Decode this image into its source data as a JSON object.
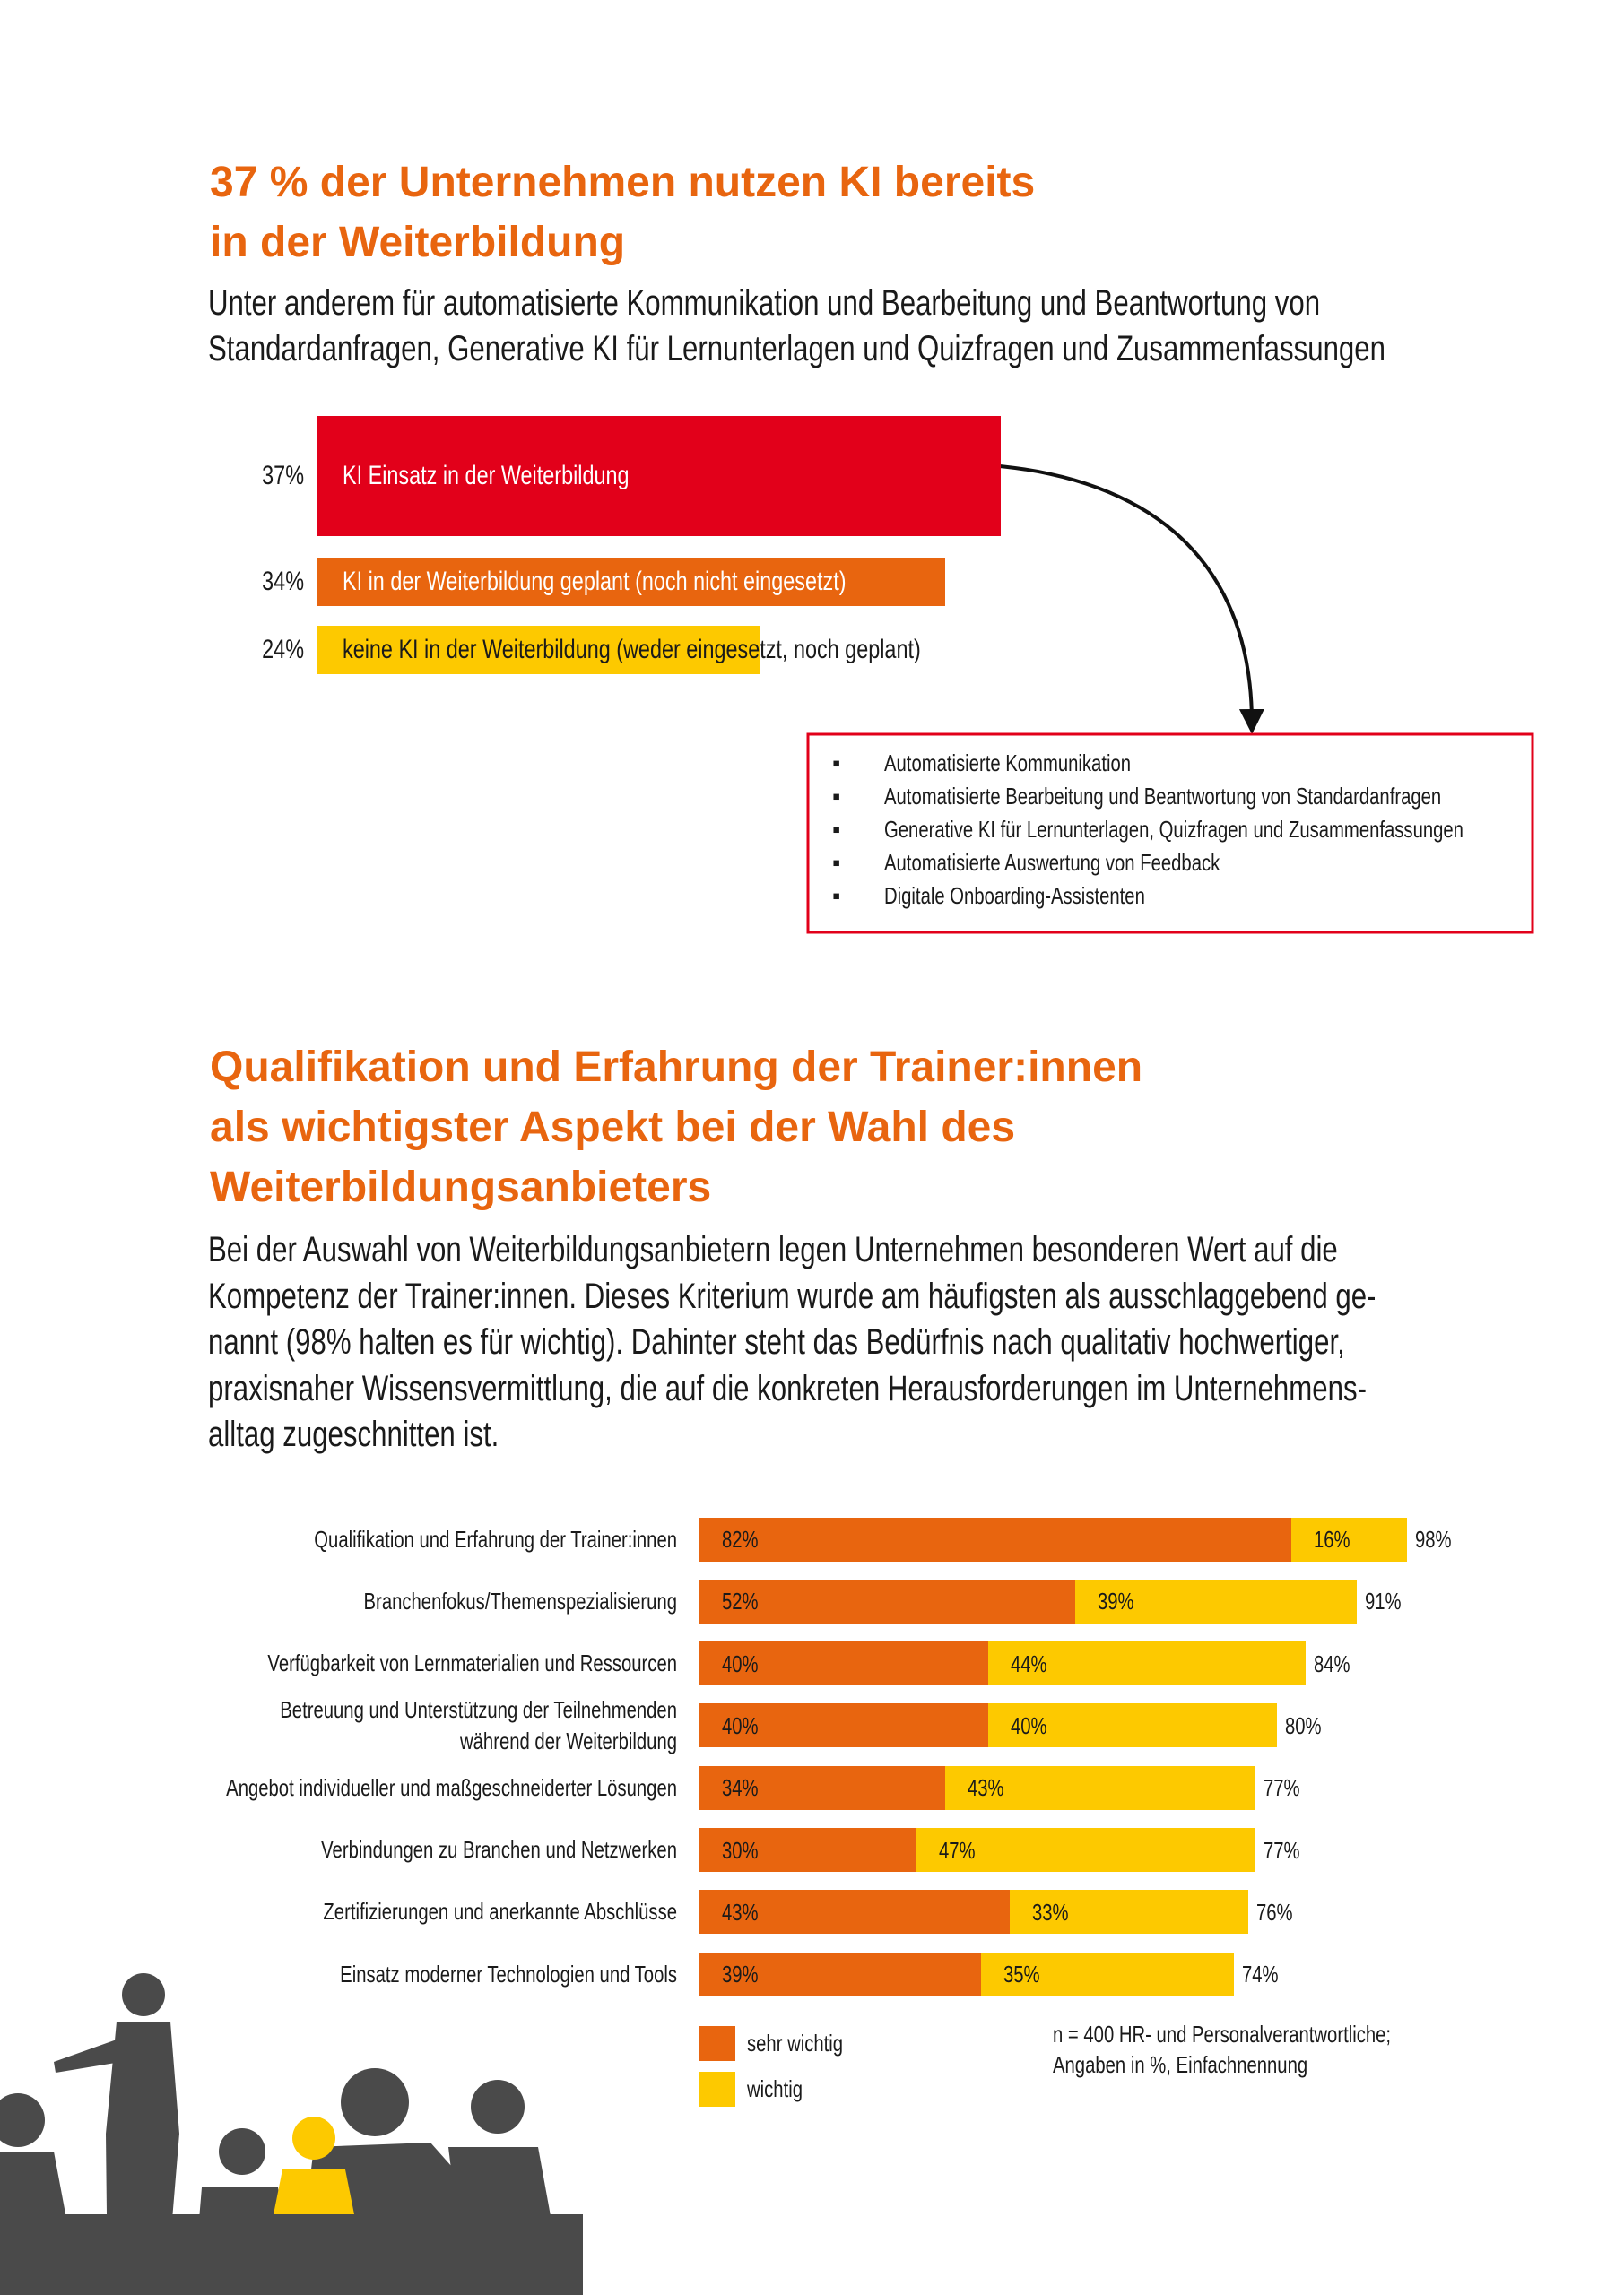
{
  "section1": {
    "title": "37 % der Unternehmen nutzen KI bereits\nin der Weiterbildung",
    "subtitle": "Unter anderem für automatisierte Kommunikation und Bearbeitung und Beantwortung von\nStandardanfragen, Generative KI für Lernunterlagen und Quizfragen und Zusammenfassungen"
  },
  "callout": {
    "items": [
      "Automatisierte Kommunikation",
      "Automatisierte Bearbeitung und Beantwortung von Standardanfragen",
      "Generative KI für Lernunterlagen, Quizfragen und Zusammenfassungen",
      "Automatisierte Auswertung von Feedback",
      "Digitale Onboarding-Assistenten"
    ]
  },
  "section2": {
    "title": "Qualifikation und Erfahrung der Trainer:innen\nals wichtigster Aspekt bei der Wahl des\nWeiterbildungsanbieters",
    "body": "Bei der Auswahl von Weiterbildungsanbietern legen Unternehmen besonderen Wert auf die\nKompetenz der Trainer:innen. Dieses Kriterium wurde am häufigsten als ausschlaggebend ge-\nnannt (98% halten es für wichtig). Dahinter steht das Bedürfnis nach qualitativ hochwertiger,\npraxisnaher Wissensvermittlung, die auf die konkreten Herausforderungen im Unternehmens-\nalltag zugeschnitten ist."
  },
  "chart_data": [
    {
      "type": "bar",
      "orientation": "horizontal",
      "categories": [
        "KI Einsatz in der Weiterbildung",
        "KI in der Weiterbildung geplant (noch nicht eingesetzt)",
        "keine KI in der Weiterbildung (weder eingesetzt, noch geplant)"
      ],
      "values": [
        37,
        34,
        24
      ],
      "value_labels": [
        "37%",
        "34%",
        "24%"
      ],
      "colors": [
        "#e2001a",
        "#e8650f",
        "#fdc900"
      ]
    },
    {
      "type": "stacked_bar",
      "orientation": "horizontal",
      "categories": [
        "Qualifikation und Erfahrung der Trainer:innen",
        "Branchenfokus/Themenspezialisierung",
        "Verfügbarkeit von Lernmaterialien und Ressourcen",
        "Betreuung und Unterstützung der Teilnehmenden\nwährend der Weiterbildung",
        "Angebot individueller und maßgeschneiderter Lösungen",
        "Verbindungen zu Branchen und Netzwerken",
        "Zertifizierungen und anerkannte Abschlüsse",
        "Einsatz moderner Technologien und Tools"
      ],
      "series": [
        {
          "name": "sehr wichtig",
          "color": "#e8650f",
          "values": [
            82,
            52,
            40,
            40,
            34,
            30,
            43,
            39
          ],
          "value_labels": [
            "82%",
            "52%",
            "40%",
            "40%",
            "34%",
            "30%",
            "43%",
            "39%"
          ]
        },
        {
          "name": "wichtig",
          "color": "#fdc900",
          "values": [
            16,
            39,
            44,
            40,
            43,
            47,
            33,
            35
          ],
          "value_labels": [
            "16%",
            "39%",
            "44%",
            "40%",
            "43%",
            "47%",
            "33%",
            "35%"
          ]
        }
      ],
      "totals": [
        98,
        91,
        84,
        80,
        77,
        77,
        76,
        74
      ],
      "total_labels": [
        "98%",
        "91%",
        "84%",
        "80%",
        "77%",
        "77%",
        "76%",
        "74%"
      ],
      "legend": "bottom",
      "note": "n = 400 HR- und Personalverantwortliche;\nAngaben in %, Einfachnennung"
    }
  ]
}
